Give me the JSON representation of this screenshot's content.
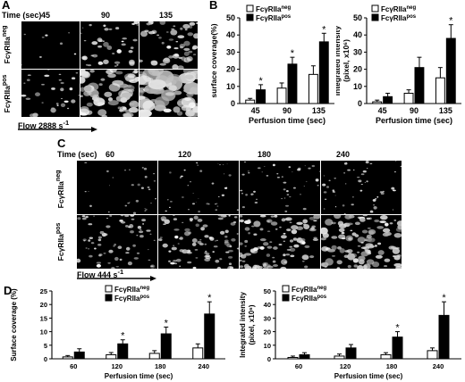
{
  "panels": {
    "A": {
      "label": "A",
      "time_header": "Time (sec)",
      "times": [
        "45",
        "90",
        "135"
      ],
      "rows": [
        {
          "name": "FcγRIIa",
          "sup": "neg"
        },
        {
          "name": "FcγRIIa",
          "sup": "pos"
        }
      ],
      "flow_label": "Flow 2888 s",
      "flow_sup": "-1"
    },
    "C": {
      "label": "C",
      "time_header": "Time (sec)",
      "times": [
        "60",
        "120",
        "180",
        "240"
      ],
      "rows": [
        {
          "name": "FcγRIIa",
          "sup": "neg"
        },
        {
          "name": "FcγRIIa",
          "sup": "pos"
        }
      ],
      "flow_label": "Flow 444 s",
      "flow_sup": "-1"
    },
    "B": {
      "label": "B"
    },
    "D": {
      "label": "D"
    }
  },
  "chart_data": [
    {
      "id": "B1",
      "type": "bar",
      "categories": [
        "45",
        "90",
        "135"
      ],
      "series": [
        {
          "name": "FcγRIIa",
          "sup": "neg",
          "values": [
            2,
            9,
            17
          ],
          "err": [
            1,
            3,
            5
          ]
        },
        {
          "name": "FcγRIIa",
          "sup": "pos",
          "values": [
            8,
            23,
            36
          ],
          "err": [
            3,
            4,
            5
          ]
        }
      ],
      "ylim": [
        0,
        50
      ],
      "yticks": [
        0,
        10,
        20,
        30,
        40,
        50
      ],
      "ylabel": "surface coverage(%)",
      "xlabel": "Perfusion time (sec)",
      "significance": [
        true,
        true,
        true
      ],
      "legend": "top-left",
      "tick_fontsize": "large"
    },
    {
      "id": "B2",
      "type": "bar",
      "categories": [
        "45",
        "90",
        "135"
      ],
      "series": [
        {
          "name": "FcγRIIa",
          "sup": "neg",
          "values": [
            1,
            6,
            15
          ],
          "err": [
            1,
            2,
            6
          ]
        },
        {
          "name": "FcγRIIa",
          "sup": "pos",
          "values": [
            4,
            21,
            38
          ],
          "err": [
            2,
            6,
            8
          ]
        }
      ],
      "ylim": [
        0,
        50
      ],
      "yticks": [
        0,
        10,
        20,
        30,
        40,
        50
      ],
      "ylabel": "Integrated intensity\n(pixel, x10⁶)",
      "xlabel": "Perfusion time (sec)",
      "significance": [
        false,
        false,
        true
      ],
      "legend": "top-left",
      "tick_fontsize": "large"
    },
    {
      "id": "D1",
      "type": "bar",
      "categories": [
        "60",
        "120",
        "180",
        "240"
      ],
      "series": [
        {
          "name": "FcγRIIa",
          "sup": "neg",
          "values": [
            0.7,
            1.5,
            2,
            4
          ],
          "err": [
            0.5,
            0.8,
            1,
            1.5
          ]
        },
        {
          "name": "FcγRIIa",
          "sup": "pos",
          "values": [
            2.5,
            5.5,
            9.2,
            16.5
          ],
          "err": [
            1.2,
            1.5,
            2.5,
            4.5
          ]
        }
      ],
      "ylim": [
        0,
        25
      ],
      "yticks": [
        0,
        5,
        10,
        15,
        20,
        25
      ],
      "ylabel": "Surface coverage (%)",
      "xlabel": "Perfusion time (sec)",
      "significance": [
        false,
        true,
        true,
        true
      ],
      "legend": "top-left",
      "tick_fontsize": "small"
    },
    {
      "id": "D2",
      "type": "bar",
      "categories": [
        "60",
        "120",
        "180",
        "240"
      ],
      "series": [
        {
          "name": "FcγRIIa",
          "sup": "neg",
          "values": [
            1,
            2,
            3,
            6
          ],
          "err": [
            1,
            1.5,
            1.5,
            2
          ]
        },
        {
          "name": "FcγRIIa",
          "sup": "pos",
          "values": [
            3,
            8,
            16,
            32
          ],
          "err": [
            1.5,
            2.5,
            4,
            10
          ]
        }
      ],
      "ylim": [
        0,
        50
      ],
      "yticks": [
        0,
        10,
        20,
        30,
        40,
        50
      ],
      "ylabel": "Integrated intensity\n(pixel, x10⁶)",
      "xlabel": "Perfusion time (sec)",
      "significance": [
        false,
        false,
        true,
        true
      ],
      "legend": "top-left",
      "tick_fontsize": "small"
    }
  ]
}
